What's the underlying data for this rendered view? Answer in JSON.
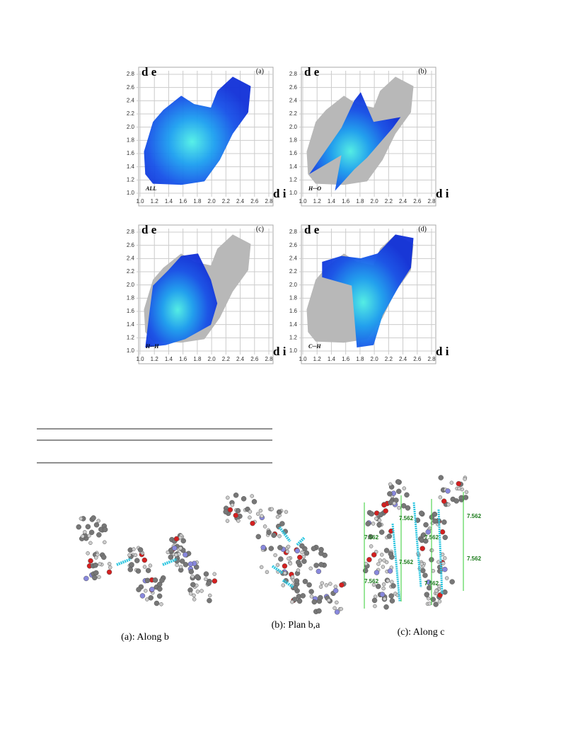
{
  "fingerprint_figure": {
    "y_axis_label": "d e",
    "x_axis_label": "d i",
    "tick_labels": [
      "1.0",
      "1.2",
      "1.4",
      "1.6",
      "1.8",
      "2.0",
      "2.2",
      "2.4",
      "2.6",
      "2.8"
    ],
    "panels": [
      {
        "tag": "(a)",
        "contact": "ALL"
      },
      {
        "tag": "(b)",
        "contact": "H···O"
      },
      {
        "tag": "(c)",
        "contact": "H···H"
      },
      {
        "tag": "(d)",
        "contact": "C···H"
      }
    ]
  },
  "packing_figure": {
    "distance_label": "7.562",
    "captions": [
      "(a): Along b",
      "(b): Plan b,a",
      "(c): Along c"
    ]
  }
}
